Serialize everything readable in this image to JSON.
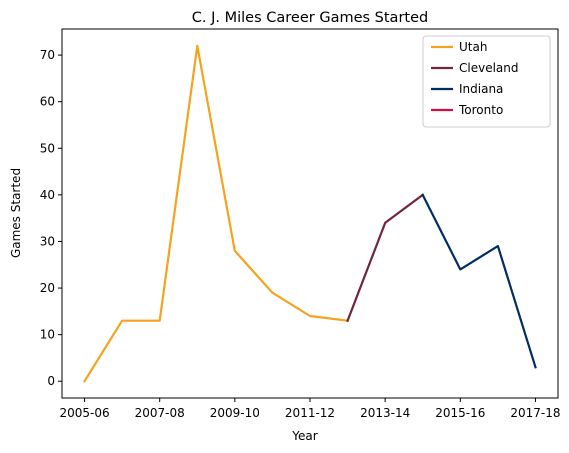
{
  "chart_data": {
    "type": "line",
    "title": "C. J. Miles Career Games Started",
    "xlabel": "Year",
    "ylabel": "Games Started",
    "x": [
      "2005-06",
      "2006-07",
      "2007-08",
      "2008-09",
      "2009-10",
      "2010-11",
      "2011-12",
      "2012-13",
      "2013-14",
      "2014-15",
      "2015-16",
      "2016-17",
      "2017-18"
    ],
    "x_tick_labels": [
      "2005-06",
      "2007-08",
      "2009-10",
      "2011-12",
      "2013-14",
      "2015-16",
      "2017-18"
    ],
    "ylim": [
      -3.6,
      75.6
    ],
    "y_ticks": [
      0,
      10,
      20,
      30,
      40,
      50,
      60,
      70
    ],
    "grid": false,
    "legend_position": "top-right",
    "series": [
      {
        "name": "Utah",
        "color": "#F5A21F",
        "x": [
          "2005-06",
          "2006-07",
          "2007-08",
          "2008-09",
          "2009-10",
          "2010-11",
          "2011-12",
          "2012-13"
        ],
        "values": [
          0,
          13,
          13,
          72,
          28,
          19,
          14,
          13
        ]
      },
      {
        "name": "Cleveland",
        "color": "#6F263D",
        "x": [
          "2012-13",
          "2013-14",
          "2014-15"
        ],
        "values": [
          13,
          34,
          40
        ]
      },
      {
        "name": "Indiana",
        "color": "#002D62",
        "x": [
          "2014-15",
          "2015-16",
          "2016-17",
          "2017-18"
        ],
        "values": [
          40,
          24,
          29,
          3
        ]
      },
      {
        "name": "Toronto",
        "color": "#CE1141",
        "x": [],
        "values": []
      }
    ]
  }
}
